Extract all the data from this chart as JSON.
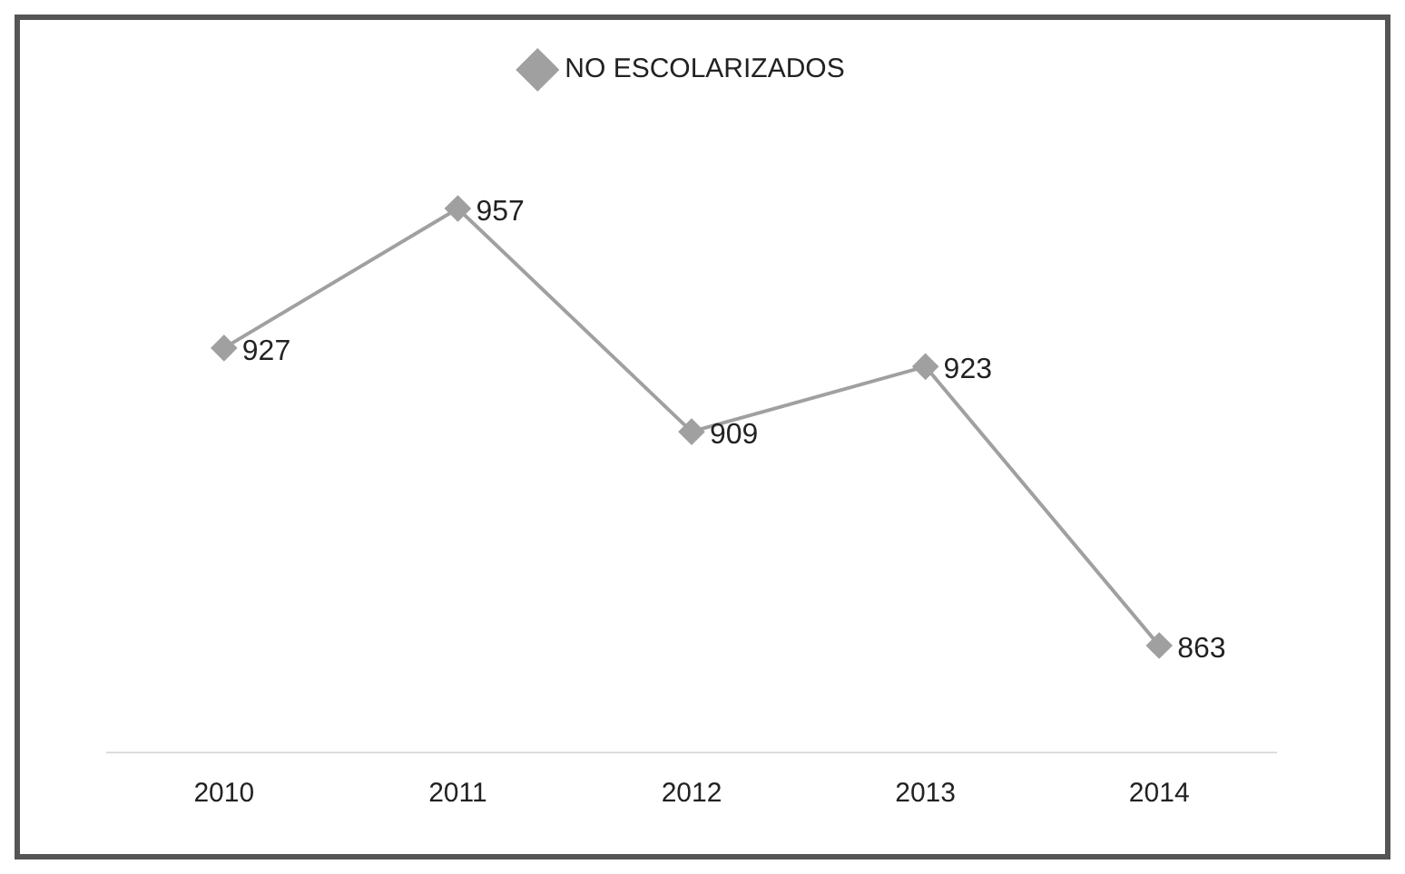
{
  "chart_data": {
    "type": "line",
    "categories": [
      "2010",
      "2011",
      "2012",
      "2013",
      "2014"
    ],
    "series": [
      {
        "name": "NO ESCOLARIZADOS",
        "color": "#a0a0a0",
        "values": [
          927,
          957,
          909,
          923,
          863
        ]
      }
    ],
    "tick_labels": "x",
    "data_labels": true,
    "legend": "top",
    "marker": "diamond",
    "line_style": "solid",
    "grid": false
  }
}
